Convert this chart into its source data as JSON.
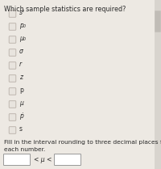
{
  "title": "Which sample statistics are required?",
  "checkboxes": [
    "s²",
    "p₀",
    "μ₀",
    "σ",
    "r",
    "z",
    "p",
    "μ",
    "ṗ",
    "s"
  ],
  "footer_line1": "Fill in the interval rounding to three decimal places for",
  "footer_line2": "each number.",
  "interval_label": "< μ <",
  "bg_color": "#ede9e3",
  "text_color": "#2a2a2a",
  "checkbox_border": "#b8b0a8",
  "checkbox_bg": "#e8e4de",
  "box_bg": "#ffffff",
  "scrollbar_bg": "#d8d4ce",
  "scrollbar_handle": "#c0bcb6",
  "title_fontsize": 5.8,
  "item_fontsize": 5.5,
  "footer_fontsize": 5.4
}
